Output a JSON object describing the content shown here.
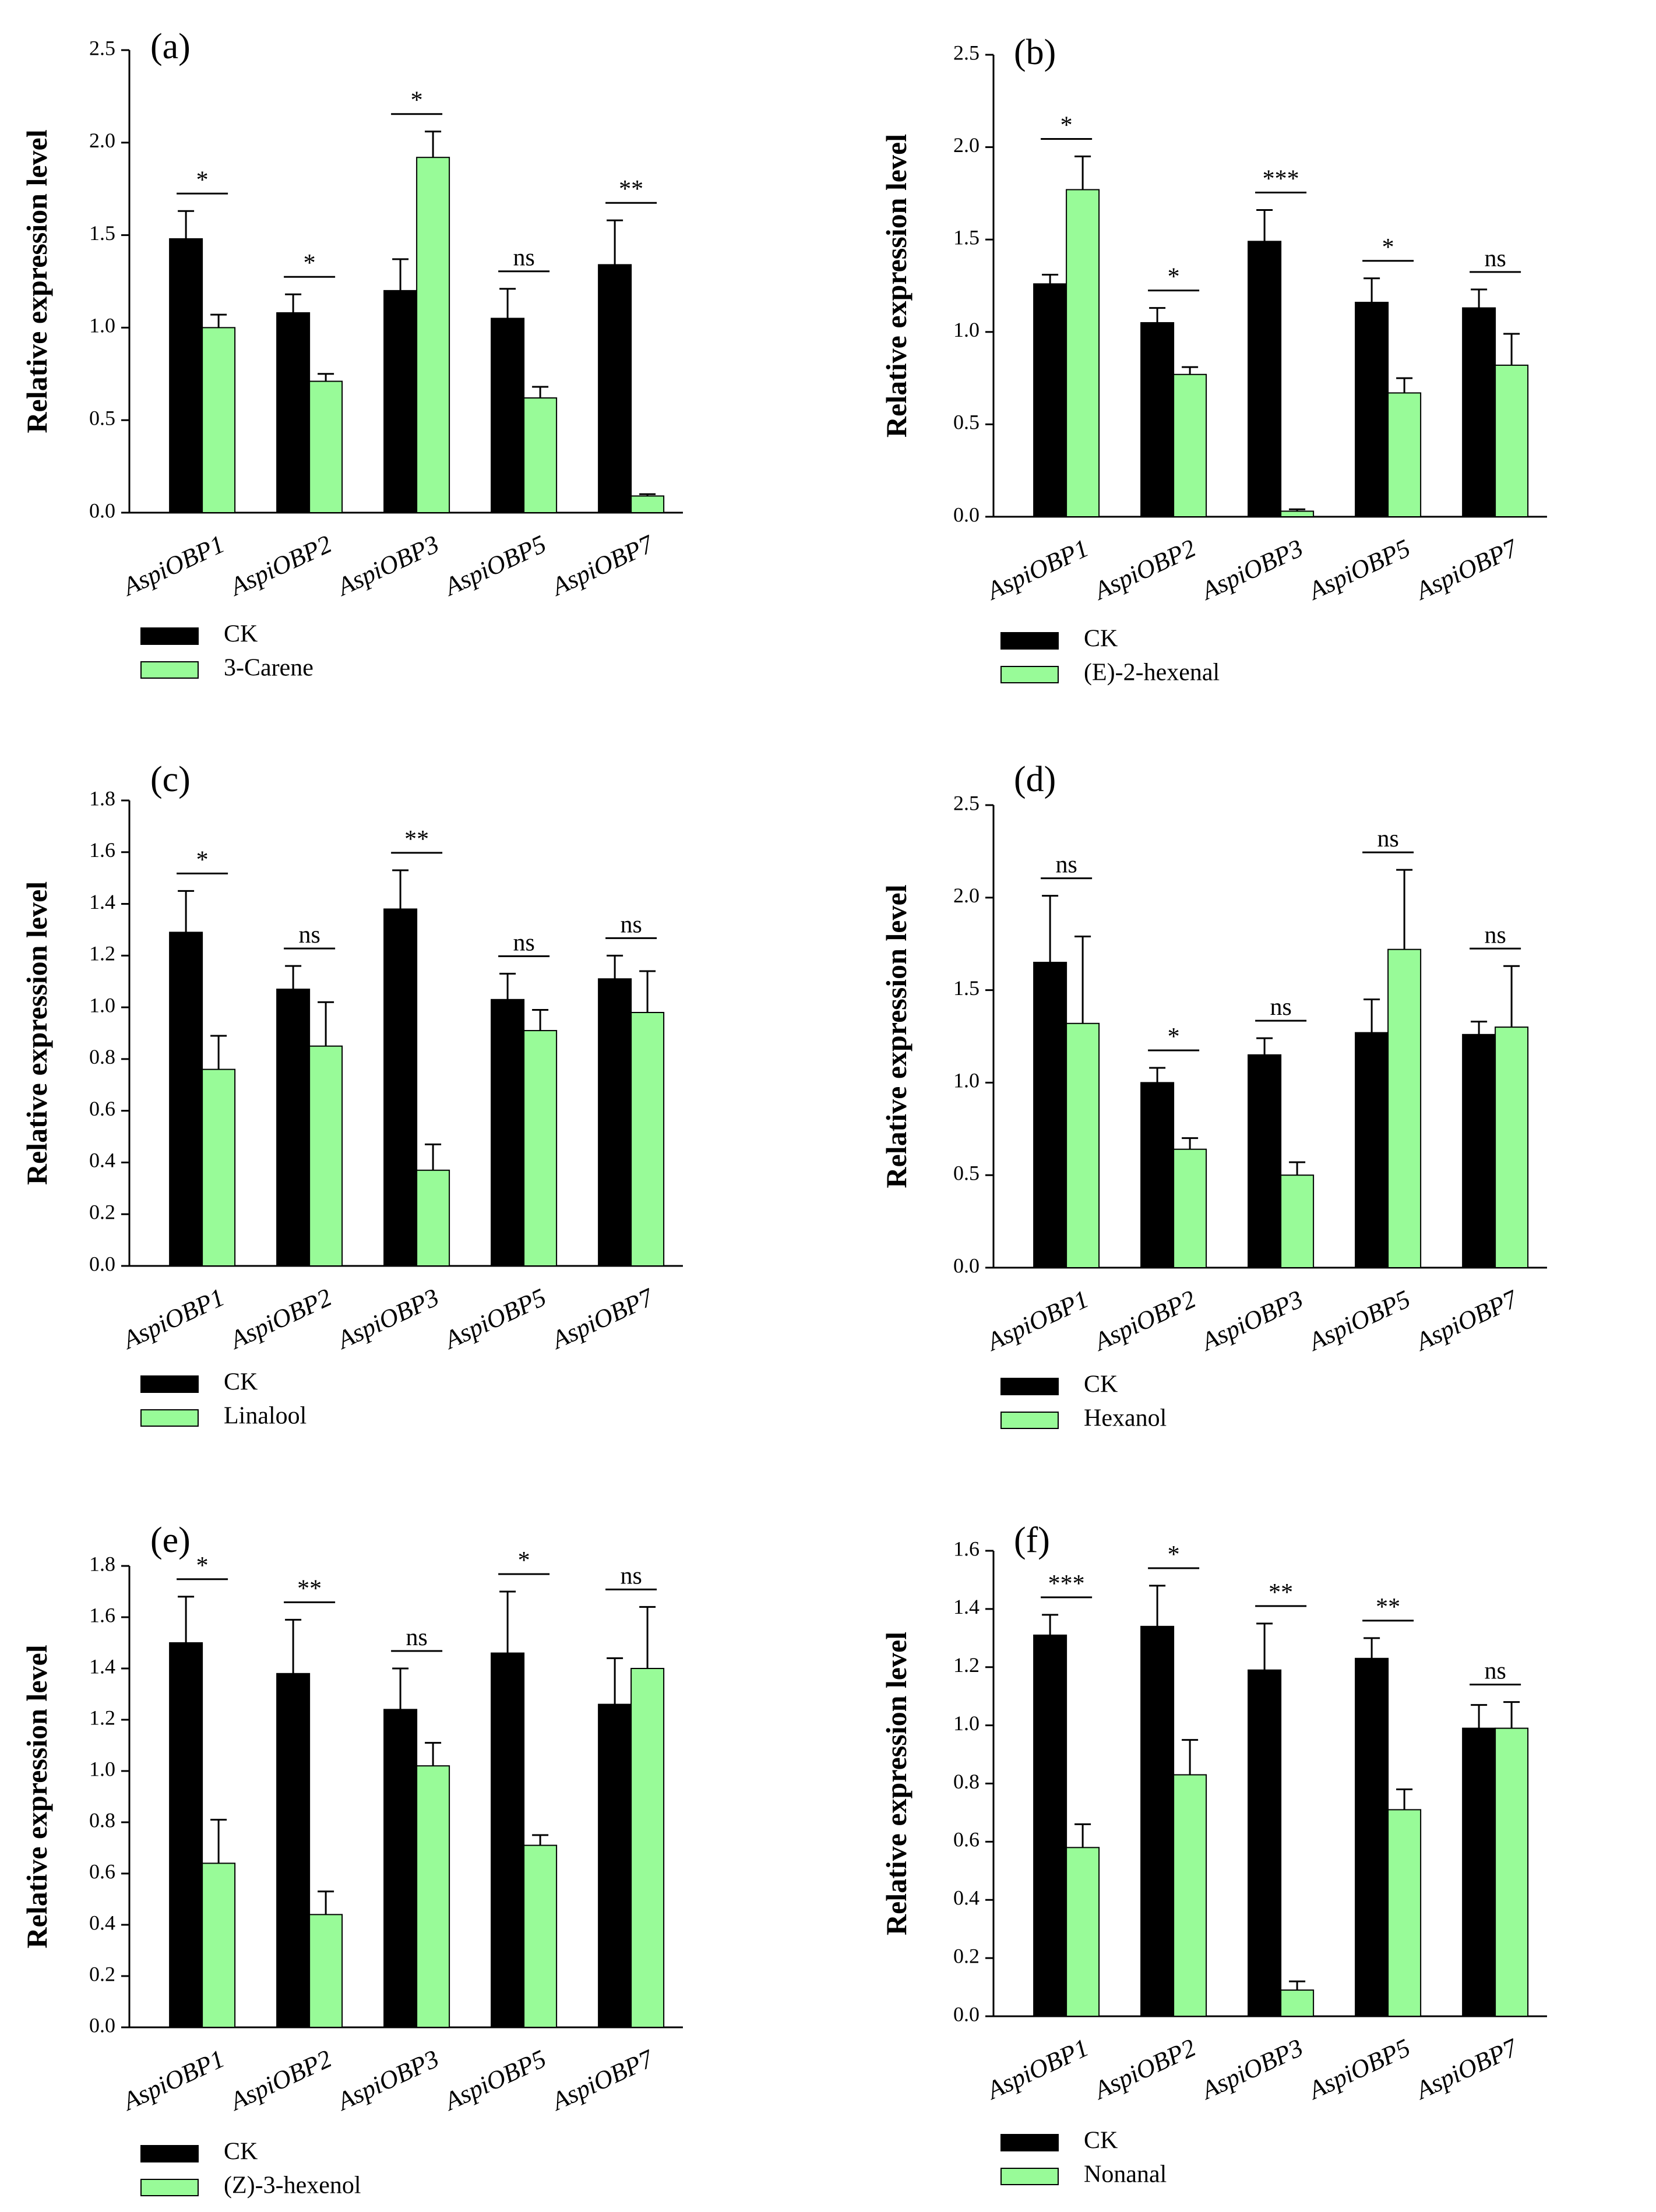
{
  "colors": {
    "ck": "#000000",
    "treatment": "#98FB98",
    "axis": "#000000"
  },
  "chart_data": [
    {
      "type": "bar",
      "panel_label": "(a)",
      "ylabel": "Relative expression level",
      "categories": [
        "AspiOBP1",
        "AspiOBP2",
        "AspiOBP3",
        "AspiOBP5",
        "AspiOBP7"
      ],
      "ylim": [
        0,
        2.5
      ],
      "yticks": [
        "0.0",
        "0.5",
        "1.0",
        "1.5",
        "2.0",
        "2.5"
      ],
      "series": [
        {
          "name": "CK",
          "values": [
            1.48,
            1.08,
            1.2,
            1.05,
            1.34
          ],
          "errors": [
            0.15,
            0.1,
            0.17,
            0.16,
            0.24
          ]
        },
        {
          "name": "3-Carene",
          "values": [
            1.0,
            0.71,
            1.92,
            0.62,
            0.09
          ],
          "errors": [
            0.07,
            0.04,
            0.14,
            0.06,
            0.01
          ]
        }
      ],
      "significance": [
        "*",
        "*",
        "*",
        "ns",
        "**"
      ]
    },
    {
      "type": "bar",
      "panel_label": "(b)",
      "ylabel": "Relative expression level",
      "categories": [
        "AspiOBP1",
        "AspiOBP2",
        "AspiOBP3",
        "AspiOBP5",
        "AspiOBP7"
      ],
      "ylim": [
        0,
        2.5
      ],
      "yticks": [
        "0.0",
        "0.5",
        "1.0",
        "1.5",
        "2.0",
        "2.5"
      ],
      "series": [
        {
          "name": "CK",
          "values": [
            1.26,
            1.05,
            1.49,
            1.16,
            1.13
          ],
          "errors": [
            0.05,
            0.08,
            0.17,
            0.13,
            0.1
          ]
        },
        {
          "name": "(E)-2-hexenal",
          "values": [
            1.77,
            0.77,
            0.03,
            0.67,
            0.82
          ],
          "errors": [
            0.18,
            0.04,
            0.01,
            0.08,
            0.17
          ]
        }
      ],
      "significance": [
        "*",
        "*",
        "***",
        "*",
        "ns"
      ]
    },
    {
      "type": "bar",
      "panel_label": "(c)",
      "ylabel": "Relative expression level",
      "categories": [
        "AspiOBP1",
        "AspiOBP2",
        "AspiOBP3",
        "AspiOBP5",
        "AspiOBP7"
      ],
      "ylim": [
        0,
        1.8
      ],
      "yticks": [
        "0.0",
        "0.2",
        "0.4",
        "0.6",
        "0.8",
        "1.0",
        "1.2",
        "1.4",
        "1.6",
        "1.8"
      ],
      "series": [
        {
          "name": "CK",
          "values": [
            1.29,
            1.07,
            1.38,
            1.03,
            1.11
          ],
          "errors": [
            0.16,
            0.09,
            0.15,
            0.1,
            0.09
          ]
        },
        {
          "name": "Linalool",
          "values": [
            0.76,
            0.85,
            0.37,
            0.91,
            0.98
          ],
          "errors": [
            0.13,
            0.17,
            0.1,
            0.08,
            0.16
          ]
        }
      ],
      "significance": [
        "*",
        "ns",
        "**",
        "ns",
        "ns"
      ]
    },
    {
      "type": "bar",
      "panel_label": "(d)",
      "ylabel": "Relative expression level",
      "categories": [
        "AspiOBP1",
        "AspiOBP2",
        "AspiOBP3",
        "AspiOBP5",
        "AspiOBP7"
      ],
      "ylim": [
        0,
        2.5
      ],
      "yticks": [
        "0.0",
        "0.5",
        "1.0",
        "1.5",
        "2.0",
        "2.5"
      ],
      "series": [
        {
          "name": "CK",
          "values": [
            1.65,
            1.0,
            1.15,
            1.27,
            1.26
          ],
          "errors": [
            0.36,
            0.08,
            0.09,
            0.18,
            0.07
          ]
        },
        {
          "name": "Hexanol",
          "values": [
            1.32,
            0.64,
            0.5,
            1.72,
            1.3
          ],
          "errors": [
            0.47,
            0.06,
            0.07,
            0.43,
            0.33
          ]
        }
      ],
      "significance": [
        "ns",
        "*",
        "ns",
        "ns",
        "ns"
      ]
    },
    {
      "type": "bar",
      "panel_label": "(e)",
      "ylabel": "Relative expression level",
      "categories": [
        "AspiOBP1",
        "AspiOBP2",
        "AspiOBP3",
        "AspiOBP5",
        "AspiOBP7"
      ],
      "ylim": [
        0,
        1.8
      ],
      "yticks": [
        "0.0",
        "0.2",
        "0.4",
        "0.6",
        "0.8",
        "1.0",
        "1.2",
        "1.4",
        "1.6",
        "1.8"
      ],
      "series": [
        {
          "name": "CK",
          "values": [
            1.5,
            1.38,
            1.24,
            1.46,
            1.26
          ],
          "errors": [
            0.18,
            0.21,
            0.16,
            0.24,
            0.18
          ]
        },
        {
          "name": "(Z)-3-hexenol",
          "values": [
            0.64,
            0.44,
            1.02,
            0.71,
            1.4
          ],
          "errors": [
            0.17,
            0.09,
            0.09,
            0.04,
            0.24
          ]
        }
      ],
      "significance": [
        "*",
        "**",
        "ns",
        "*",
        "ns"
      ]
    },
    {
      "type": "bar",
      "panel_label": "(f)",
      "ylabel": "Relative expression level",
      "categories": [
        "AspiOBP1",
        "AspiOBP2",
        "AspiOBP3",
        "AspiOBP5",
        "AspiOBP7"
      ],
      "ylim": [
        0,
        1.6
      ],
      "yticks": [
        "0.0",
        "0.2",
        "0.4",
        "0.6",
        "0.8",
        "1.0",
        "1.2",
        "1.4",
        "1.6"
      ],
      "series": [
        {
          "name": "CK",
          "values": [
            1.31,
            1.34,
            1.19,
            1.23,
            0.99
          ],
          "errors": [
            0.07,
            0.14,
            0.16,
            0.07,
            0.08
          ]
        },
        {
          "name": "Nonanal",
          "values": [
            0.58,
            0.83,
            0.09,
            0.71,
            0.99
          ],
          "errors": [
            0.08,
            0.12,
            0.03,
            0.07,
            0.09
          ]
        }
      ],
      "significance": [
        "***",
        "*",
        "**",
        "**",
        "ns"
      ]
    }
  ]
}
